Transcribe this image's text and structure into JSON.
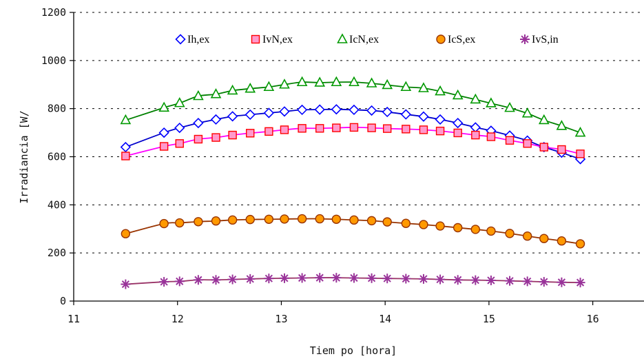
{
  "chart_data": {
    "type": "line",
    "xlabel": "Tiem po [hora]",
    "ylabel": "Irradiancia  [W/",
    "xlim": [
      11,
      16.5
    ],
    "ylim": [
      0,
      1200
    ],
    "x_ticks": [
      11,
      12,
      13,
      14,
      15,
      16
    ],
    "y_ticks": [
      0,
      200,
      400,
      600,
      800,
      1000,
      1200
    ],
    "grid": "horizontal dashed",
    "legend_position": "top",
    "series": [
      {
        "name": "Ih,ex",
        "marker": "diamond",
        "color": "#0000ff",
        "line_color": "#0000cc",
        "x": [
          11.5,
          11.87,
          12.02,
          12.2,
          12.37,
          12.53,
          12.7,
          12.88,
          13.03,
          13.2,
          13.37,
          13.53,
          13.7,
          13.87,
          14.02,
          14.2,
          14.37,
          14.53,
          14.7,
          14.87,
          15.02,
          15.2,
          15.37,
          15.53,
          15.7,
          15.88
        ],
        "y": [
          640,
          700,
          720,
          740,
          755,
          768,
          775,
          782,
          788,
          795,
          796,
          797,
          795,
          792,
          786,
          776,
          767,
          755,
          740,
          722,
          708,
          688,
          667,
          640,
          617,
          590
        ]
      },
      {
        "name": "IvN,ex",
        "marker": "square",
        "color": "#ff6699",
        "line_color": "#ff00ff",
        "x": [
          11.5,
          11.87,
          12.02,
          12.2,
          12.37,
          12.53,
          12.7,
          12.88,
          13.03,
          13.2,
          13.37,
          13.53,
          13.7,
          13.87,
          14.02,
          14.2,
          14.37,
          14.53,
          14.7,
          14.87,
          15.02,
          15.2,
          15.37,
          15.53,
          15.7,
          15.88
        ],
        "y": [
          603,
          643,
          655,
          673,
          680,
          690,
          698,
          705,
          712,
          718,
          718,
          720,
          722,
          720,
          717,
          715,
          712,
          707,
          699,
          690,
          683,
          668,
          655,
          640,
          630,
          612
        ]
      },
      {
        "name": "IcN,ex",
        "marker": "triangle",
        "color": "#009900",
        "line_color": "#008000",
        "x": [
          11.5,
          11.87,
          12.02,
          12.2,
          12.37,
          12.53,
          12.7,
          12.88,
          13.03,
          13.2,
          13.37,
          13.53,
          13.7,
          13.87,
          14.02,
          14.2,
          14.37,
          14.53,
          14.7,
          14.87,
          15.02,
          15.2,
          15.37,
          15.53,
          15.7,
          15.88
        ],
        "y": [
          752,
          804,
          823,
          852,
          860,
          875,
          883,
          890,
          900,
          910,
          908,
          910,
          910,
          905,
          898,
          890,
          885,
          872,
          855,
          838,
          822,
          803,
          780,
          752,
          728,
          700
        ]
      },
      {
        "name": "IcS,ex",
        "marker": "circle",
        "color": "#cc6600",
        "line_color": "#993300",
        "x": [
          11.5,
          11.87,
          12.02,
          12.2,
          12.37,
          12.53,
          12.7,
          12.88,
          13.03,
          13.2,
          13.37,
          13.53,
          13.7,
          13.87,
          14.02,
          14.2,
          14.37,
          14.53,
          14.7,
          14.87,
          15.02,
          15.2,
          15.37,
          15.53,
          15.7,
          15.88
        ],
        "y": [
          280,
          322,
          325,
          330,
          333,
          337,
          339,
          340,
          341,
          342,
          342,
          340,
          337,
          334,
          329,
          323,
          318,
          312,
          305,
          298,
          291,
          281,
          270,
          260,
          250,
          238
        ]
      },
      {
        "name": "IvS,in",
        "marker": "star",
        "color": "#993399",
        "line_color": "#993366",
        "x": [
          11.5,
          11.87,
          12.02,
          12.2,
          12.37,
          12.53,
          12.7,
          12.88,
          13.03,
          13.2,
          13.37,
          13.53,
          13.7,
          13.87,
          14.02,
          14.2,
          14.37,
          14.53,
          14.7,
          14.87,
          15.02,
          15.2,
          15.37,
          15.53,
          15.7,
          15.88
        ],
        "y": [
          70,
          80,
          82,
          88,
          88,
          90,
          92,
          94,
          95,
          96,
          97,
          97,
          96,
          95,
          94,
          93,
          92,
          90,
          88,
          87,
          86,
          84,
          82,
          80,
          78,
          77
        ]
      }
    ]
  }
}
